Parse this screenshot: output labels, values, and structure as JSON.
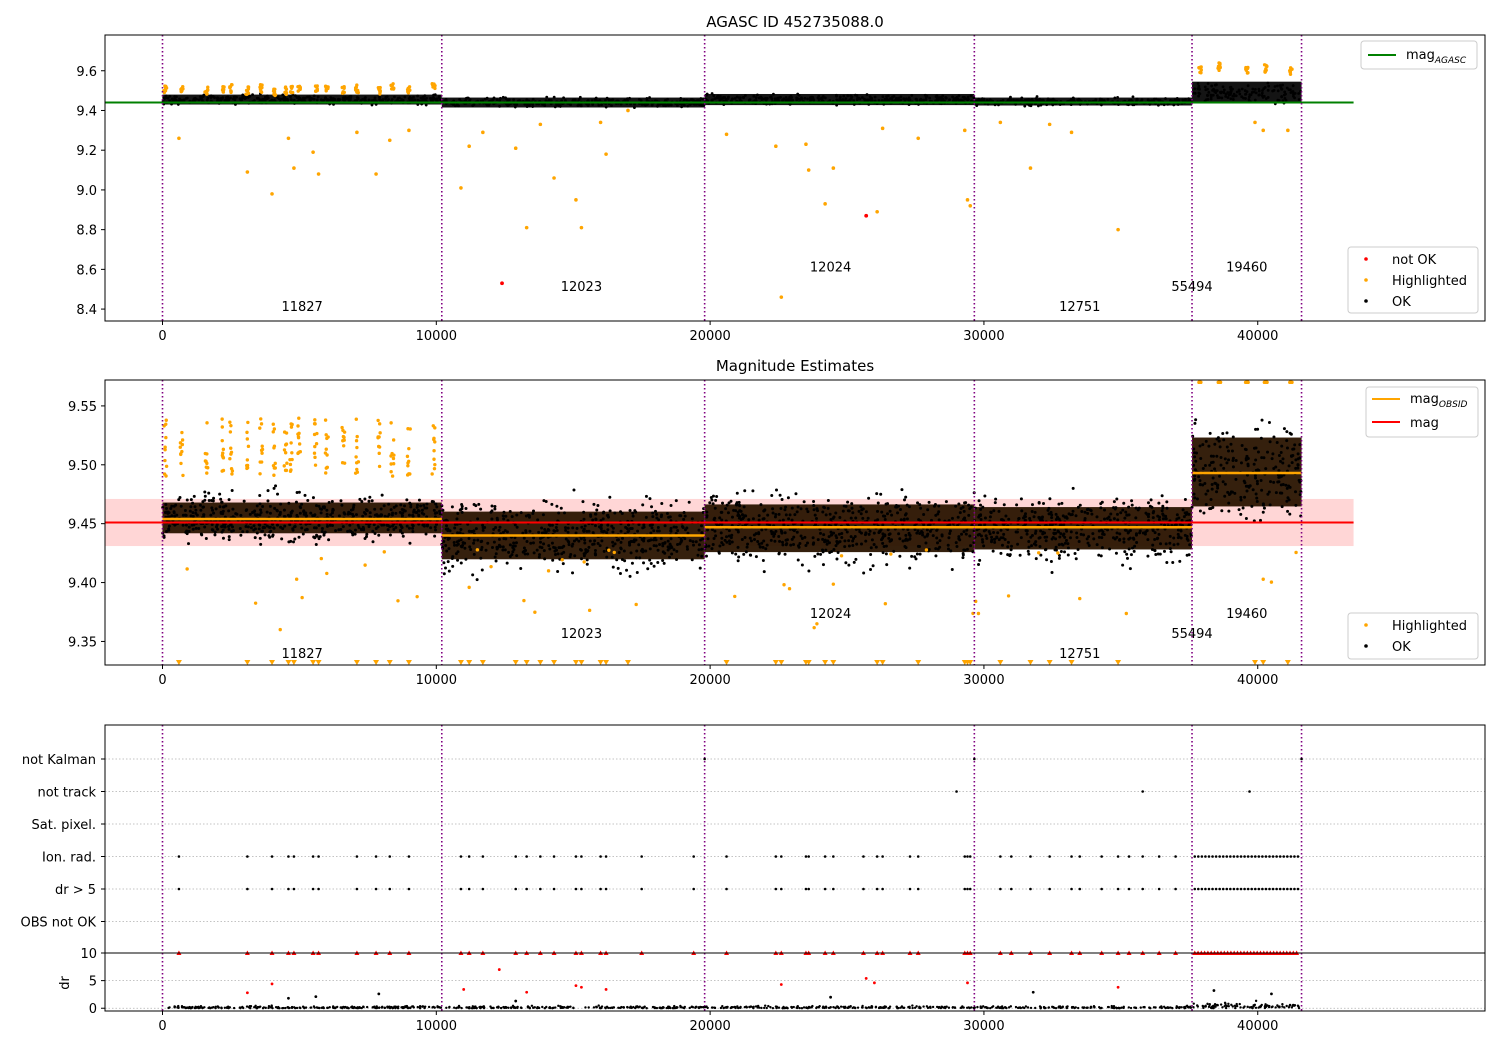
{
  "figure": {
    "width": 1500,
    "height": 1050
  },
  "colors": {
    "ok": "#000000",
    "highlighted": "#FFA500",
    "not_ok": "#FF0000",
    "agasc_line": "#008000",
    "obsid_line": "#FFA500",
    "mag_line": "#FF0000",
    "obsid_boundary": "#800080",
    "band_fill": "#FFD6D6",
    "grid": "#B0B0B0"
  },
  "chart_data": [
    {
      "type": "scatter",
      "title": "AGASC ID 452735088.0",
      "xlabel": "",
      "ylabel": "",
      "xlim": [
        -2100,
        48300
      ],
      "ylim": [
        8.34,
        9.78
      ],
      "x_ticks": [
        0,
        10000,
        20000,
        30000,
        40000
      ],
      "y_ticks": [
        8.4,
        8.6,
        8.8,
        9.0,
        9.2,
        9.4,
        9.6
      ],
      "grid": false,
      "obsid_boundaries": [
        0,
        10200,
        19800,
        29650,
        37600,
        41600
      ],
      "obsids": [
        {
          "label": "11827",
          "x": 5100,
          "y": 8.39
        },
        {
          "label": "12023",
          "x": 15300,
          "y": 8.49
        },
        {
          "label": "12024",
          "x": 24400,
          "y": 8.59
        },
        {
          "label": "12751",
          "x": 33500,
          "y": 8.39
        },
        {
          "label": "55494",
          "x": 37600,
          "y": 8.49
        },
        {
          "label": "19460",
          "x": 39600,
          "y": 8.59
        }
      ],
      "bands": [
        {
          "x_start": 0,
          "x_end": 10200,
          "center": 9.455,
          "half_width": 0.025
        },
        {
          "x_start": 10200,
          "x_end": 19800,
          "center": 9.44,
          "half_width": 0.025
        },
        {
          "x_start": 19800,
          "x_end": 29650,
          "center": 9.455,
          "half_width": 0.028
        },
        {
          "x_start": 29650,
          "x_end": 37600,
          "center": 9.445,
          "half_width": 0.02
        },
        {
          "x_start": 37600,
          "x_end": 41600,
          "center": 9.49,
          "half_width": 0.055
        }
      ],
      "lines": [
        {
          "name": "mag_AGASC",
          "y": 9.44,
          "x_start": -2100,
          "x_end": 43500
        }
      ],
      "highlight_clusters": [
        {
          "x": 100,
          "y": 9.51
        },
        {
          "x": 700,
          "y": 9.5
        },
        {
          "x": 1600,
          "y": 9.5
        },
        {
          "x": 2200,
          "y": 9.5
        },
        {
          "x": 2500,
          "y": 9.51
        },
        {
          "x": 3100,
          "y": 9.5
        },
        {
          "x": 3600,
          "y": 9.51
        },
        {
          "x": 4100,
          "y": 9.49
        },
        {
          "x": 4500,
          "y": 9.5
        },
        {
          "x": 4700,
          "y": 9.51
        },
        {
          "x": 5000,
          "y": 9.51
        },
        {
          "x": 5600,
          "y": 9.51
        },
        {
          "x": 6000,
          "y": 9.51
        },
        {
          "x": 6600,
          "y": 9.5
        },
        {
          "x": 7100,
          "y": 9.51
        },
        {
          "x": 7900,
          "y": 9.5
        },
        {
          "x": 8400,
          "y": 9.52
        },
        {
          "x": 9000,
          "y": 9.5
        },
        {
          "x": 9900,
          "y": 9.52
        },
        {
          "x": 37900,
          "y": 9.6
        },
        {
          "x": 38600,
          "y": 9.62
        },
        {
          "x": 39600,
          "y": 9.6
        },
        {
          "x": 40300,
          "y": 9.61
        },
        {
          "x": 41200,
          "y": 9.6
        }
      ],
      "outliers_highlighted": [
        {
          "x": 600,
          "y": 9.26
        },
        {
          "x": 3100,
          "y": 9.09
        },
        {
          "x": 4000,
          "y": 8.98
        },
        {
          "x": 4600,
          "y": 9.26
        },
        {
          "x": 4800,
          "y": 9.11
        },
        {
          "x": 5500,
          "y": 9.19
        },
        {
          "x": 5700,
          "y": 9.08
        },
        {
          "x": 7100,
          "y": 9.29
        },
        {
          "x": 7800,
          "y": 9.08
        },
        {
          "x": 8300,
          "y": 9.25
        },
        {
          "x": 9000,
          "y": 9.3
        },
        {
          "x": 10900,
          "y": 9.01
        },
        {
          "x": 11200,
          "y": 9.22
        },
        {
          "x": 11700,
          "y": 9.29
        },
        {
          "x": 12900,
          "y": 9.21
        },
        {
          "x": 13300,
          "y": 8.81
        },
        {
          "x": 13800,
          "y": 9.33
        },
        {
          "x": 14300,
          "y": 9.06
        },
        {
          "x": 15100,
          "y": 8.95
        },
        {
          "x": 15300,
          "y": 8.81
        },
        {
          "x": 16000,
          "y": 9.34
        },
        {
          "x": 16200,
          "y": 9.18
        },
        {
          "x": 17000,
          "y": 9.4
        },
        {
          "x": 20600,
          "y": 9.28
        },
        {
          "x": 22400,
          "y": 9.22
        },
        {
          "x": 22600,
          "y": 8.46
        },
        {
          "x": 23500,
          "y": 9.23
        },
        {
          "x": 23600,
          "y": 9.1
        },
        {
          "x": 24200,
          "y": 8.93
        },
        {
          "x": 24500,
          "y": 9.11
        },
        {
          "x": 26100,
          "y": 8.89
        },
        {
          "x": 26300,
          "y": 9.31
        },
        {
          "x": 27600,
          "y": 9.26
        },
        {
          "x": 29300,
          "y": 9.3
        },
        {
          "x": 29400,
          "y": 8.95
        },
        {
          "x": 29500,
          "y": 8.92
        },
        {
          "x": 30600,
          "y": 9.34
        },
        {
          "x": 31700,
          "y": 9.11
        },
        {
          "x": 32400,
          "y": 9.33
        },
        {
          "x": 33200,
          "y": 9.29
        },
        {
          "x": 34900,
          "y": 8.8
        },
        {
          "x": 39900,
          "y": 9.34
        },
        {
          "x": 40200,
          "y": 9.3
        },
        {
          "x": 41100,
          "y": 9.3
        }
      ],
      "outliers_not_ok": [
        {
          "x": 12400,
          "y": 8.53
        },
        {
          "x": 25700,
          "y": 8.87
        }
      ],
      "legends": [
        {
          "position": "upper right",
          "entries": [
            {
              "label": "mag",
              "subscript": "AGASC",
              "kind": "line",
              "color": "#008000"
            }
          ]
        },
        {
          "position": "lower right",
          "entries": [
            {
              "label": "not OK",
              "kind": "dot",
              "color": "#FF0000"
            },
            {
              "label": "Highlighted",
              "kind": "dot",
              "color": "#FFA500"
            },
            {
              "label": "OK",
              "kind": "dot",
              "color": "#000000"
            }
          ]
        }
      ]
    },
    {
      "type": "scatter",
      "title": "Magnitude Estimates",
      "xlabel": "",
      "ylabel": "",
      "xlim": [
        -2100,
        48300
      ],
      "ylim": [
        9.33,
        9.572
      ],
      "x_ticks": [
        0,
        10000,
        20000,
        30000,
        40000
      ],
      "y_ticks": [
        9.35,
        9.4,
        9.45,
        9.5,
        9.55
      ],
      "grid": false,
      "obsid_boundaries": [
        0,
        10200,
        19800,
        29650,
        37600,
        41600
      ],
      "obsids": [
        {
          "label": "11827",
          "x": 5100,
          "y": 9.336
        },
        {
          "label": "12023",
          "x": 15300,
          "y": 9.353
        },
        {
          "label": "12024",
          "x": 24400,
          "y": 9.37
        },
        {
          "label": "12751",
          "x": 33500,
          "y": 9.336
        },
        {
          "label": "55494",
          "x": 37600,
          "y": 9.353
        },
        {
          "label": "19460",
          "x": 39600,
          "y": 9.37
        }
      ],
      "mag_band": {
        "center": 9.451,
        "low": 9.431,
        "high": 9.471,
        "x_start": -2100,
        "x_end": 43500
      },
      "segments": [
        {
          "x_start": 0,
          "x_end": 10200,
          "mag_obsid": 9.454,
          "spread_low": 9.427,
          "spread_high": 9.485
        },
        {
          "x_start": 10200,
          "x_end": 19800,
          "mag_obsid": 9.44,
          "spread_low": 9.395,
          "spread_high": 9.485
        },
        {
          "x_start": 19800,
          "x_end": 29650,
          "mag_obsid": 9.447,
          "spread_low": 9.4,
          "spread_high": 9.49
        },
        {
          "x_start": 29650,
          "x_end": 37600,
          "mag_obsid": 9.447,
          "spread_low": 9.405,
          "spread_high": 9.485
        },
        {
          "x_start": 37600,
          "x_end": 41600,
          "mag_obsid": 9.493,
          "spread_low": 9.43,
          "spread_high": 9.56
        }
      ],
      "lines": [
        {
          "name": "mag_OBSID",
          "color": "#FFA500"
        },
        {
          "name": "mag",
          "y": 9.451,
          "color": "#FF0000"
        }
      ],
      "legends": [
        {
          "position": "upper right",
          "entries": [
            {
              "label": "mag",
              "subscript": "OBSID",
              "kind": "line",
              "color": "#FFA500"
            },
            {
              "label": "mag",
              "subscript": "",
              "kind": "line",
              "color": "#FF0000"
            }
          ]
        },
        {
          "position": "lower right",
          "entries": [
            {
              "label": "Highlighted",
              "kind": "dot",
              "color": "#FFA500"
            },
            {
              "label": "OK",
              "kind": "dot",
              "color": "#000000"
            }
          ]
        }
      ]
    },
    {
      "type": "scatter",
      "title": "",
      "xlabel": "",
      "ylabel": "",
      "xlim": [
        -2100,
        48300
      ],
      "categories": [
        "OBS not OK",
        "dr > 5",
        "Ion. rad.",
        "Sat. pixel.",
        "not track",
        "not Kalman"
      ],
      "grid": true,
      "obsid_boundaries": [
        0,
        10200,
        19800,
        29650,
        37600,
        41600
      ],
      "flag_events": {
        "Ion. rad.": [
          600,
          3100,
          4000,
          4600,
          4800,
          5500,
          5700,
          7100,
          7800,
          8300,
          9000,
          10900,
          11200,
          11700,
          12900,
          13300,
          13800,
          14300,
          15100,
          15300,
          16000,
          16200,
          17500,
          19400,
          20600,
          22400,
          22600,
          23500,
          23600,
          24200,
          24500,
          25600,
          26100,
          26300,
          27300,
          27600,
          29300,
          29400,
          29500,
          30600,
          31000,
          31700,
          32400,
          33200,
          33500,
          34300,
          34900,
          35300,
          35800,
          36400,
          37000
        ],
        "dr > 5": [
          600,
          3100,
          4000,
          4600,
          4800,
          5500,
          5700,
          7100,
          7800,
          8300,
          9000,
          10900,
          11200,
          11700,
          12900,
          13300,
          13800,
          14300,
          15100,
          15300,
          16000,
          16200,
          17500,
          19400,
          20600,
          22400,
          22600,
          23500,
          23600,
          24200,
          24500,
          25600,
          26100,
          26300,
          27300,
          27600,
          29300,
          29400,
          29500,
          30600,
          31000,
          31700,
          32400,
          33200,
          33500,
          34300,
          34900,
          35300,
          35800,
          36400,
          37000
        ],
        "not track": [
          29000,
          35800,
          39700
        ],
        "not Kalman": [
          19800,
          29650,
          41600
        ],
        "Sat. pixel.": [],
        "OBS not OK": []
      },
      "dense_flag_range": {
        "x_start": 37700,
        "x_end": 41500
      }
    },
    {
      "type": "scatter",
      "title": "",
      "xlabel": "",
      "ylabel": "dr",
      "xlim": [
        -2100,
        48300
      ],
      "ylim": [
        -0.5,
        10
      ],
      "x_ticks": [
        0,
        10000,
        20000,
        30000,
        40000
      ],
      "y_ticks": [
        0,
        5,
        10
      ],
      "grid": true,
      "obsid_boundaries": [
        0,
        10200,
        19800,
        29650,
        37600,
        41600
      ],
      "dr_capped": [
        600,
        3100,
        4000,
        4600,
        4800,
        5500,
        5700,
        7100,
        7800,
        8300,
        9000,
        10900,
        11200,
        11700,
        12900,
        13300,
        13800,
        14300,
        15100,
        15300,
        16000,
        16200,
        17500,
        19400,
        20600,
        22400,
        22600,
        23500,
        23600,
        24200,
        24500,
        25600,
        26100,
        26300,
        27300,
        27600,
        29300,
        29400,
        29500,
        30600,
        31000,
        31700,
        32400,
        33200,
        33500,
        34300,
        34900,
        35300,
        35800,
        36400,
        37000
      ],
      "dr_outliers_red": [
        {
          "x": 3100,
          "y": 2.8
        },
        {
          "x": 4000,
          "y": 4.4
        },
        {
          "x": 11000,
          "y": 3.4
        },
        {
          "x": 12300,
          "y": 7.0
        },
        {
          "x": 13300,
          "y": 2.9
        },
        {
          "x": 15100,
          "y": 4.1
        },
        {
          "x": 15300,
          "y": 3.8
        },
        {
          "x": 16200,
          "y": 3.4
        },
        {
          "x": 22600,
          "y": 4.3
        },
        {
          "x": 25700,
          "y": 5.4
        },
        {
          "x": 26000,
          "y": 4.6
        },
        {
          "x": 29400,
          "y": 4.6
        },
        {
          "x": 34900,
          "y": 3.8
        }
      ],
      "dr_outliers_black": [
        {
          "x": 4600,
          "y": 1.8
        },
        {
          "x": 5600,
          "y": 2.1
        },
        {
          "x": 7900,
          "y": 2.6
        },
        {
          "x": 12900,
          "y": 1.3
        },
        {
          "x": 24400,
          "y": 2.0
        },
        {
          "x": 31800,
          "y": 2.9
        },
        {
          "x": 38400,
          "y": 3.2
        },
        {
          "x": 40500,
          "y": 2.6
        }
      ]
    }
  ]
}
